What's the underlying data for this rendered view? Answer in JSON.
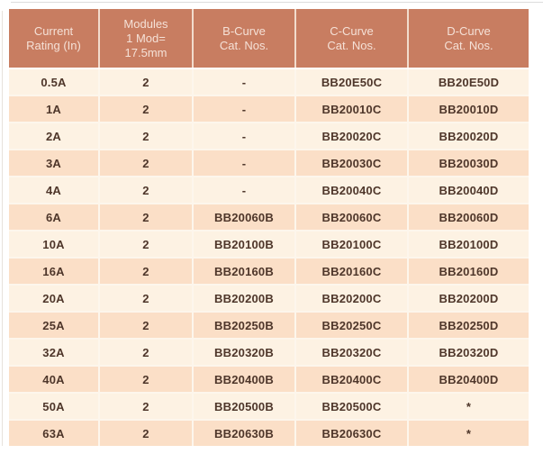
{
  "table": {
    "headers": [
      "Current\nRating (In)",
      "Modules\n1 Mod=\n17.5mm",
      "B-Curve\nCat. Nos.",
      "C-Curve\nCat. Nos.",
      "D-Curve\nCat. Nos."
    ],
    "rows": [
      [
        "0.5A",
        "2",
        "-",
        "BB20E50C",
        "BB20E50D"
      ],
      [
        "1A",
        "2",
        "-",
        "BB20010C",
        "BB20010D"
      ],
      [
        "2A",
        "2",
        "-",
        "BB20020C",
        "BB20020D"
      ],
      [
        "3A",
        "2",
        "-",
        "BB20030C",
        "BB20030D"
      ],
      [
        "4A",
        "2",
        "-",
        "BB20040C",
        "BB20040D"
      ],
      [
        "6A",
        "2",
        "BB20060B",
        "BB20060C",
        "BB20060D"
      ],
      [
        "10A",
        "2",
        "BB20100B",
        "BB20100C",
        "BB20100D"
      ],
      [
        "16A",
        "2",
        "BB20160B",
        "BB20160C",
        "BB20160D"
      ],
      [
        "20A",
        "2",
        "BB20200B",
        "BB20200C",
        "BB20200D"
      ],
      [
        "25A",
        "2",
        "BB20250B",
        "BB20250C",
        "BB20250D"
      ],
      [
        "32A",
        "2",
        "BB20320B",
        "BB20320C",
        "BB20320D"
      ],
      [
        "40A",
        "2",
        "BB20400B",
        "BB20400C",
        "BB20400D"
      ],
      [
        "50A",
        "2",
        "BB20500B",
        "BB20500C",
        "*"
      ],
      [
        "63A",
        "2",
        "BB20630B",
        "BB20630C",
        "*"
      ]
    ],
    "colors": {
      "header_bg": "#c87d61",
      "header_text": "#f5e1d7",
      "row_light_bg": "#fdf2e3",
      "row_dark_bg": "#fbdfc7",
      "cell_text": "#4e362a",
      "grid_line": "#fdf6ec"
    }
  }
}
